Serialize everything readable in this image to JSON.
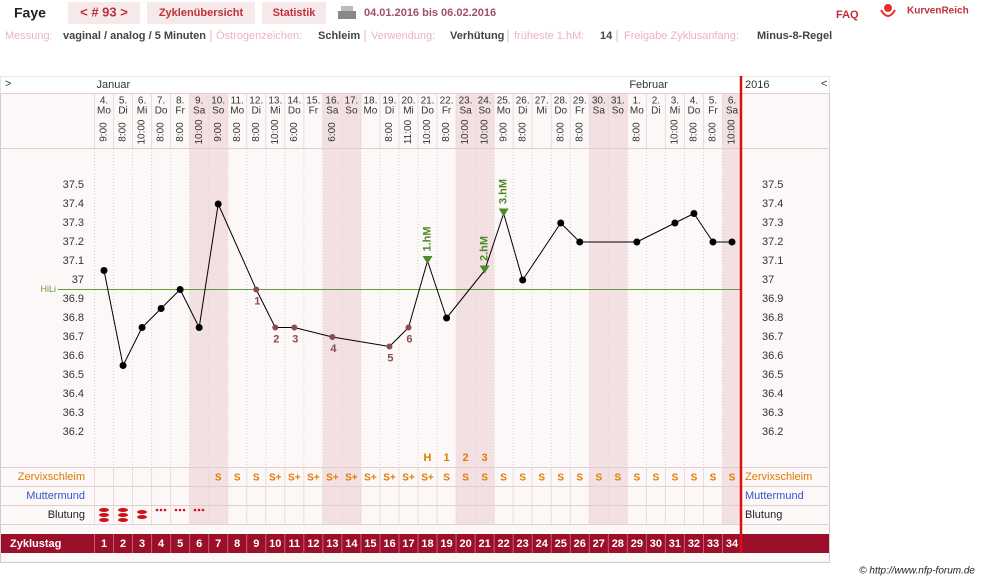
{
  "header": {
    "name": "Faye",
    "cycle_nav": "< # 93 >",
    "tabs": [
      "Zyklenübersicht",
      "Statistik"
    ],
    "date_range": "04.01.2016 bis 06.02.2016",
    "faq": "FAQ",
    "logo": "KurvenReich"
  },
  "settings": [
    {
      "label": "Messung:",
      "value": "vaginal / analog / 5 Minuten"
    },
    {
      "label": "Östrogenzeichen:",
      "value": "Schleim"
    },
    {
      "label": "Verwendung:",
      "value": "Verhütung"
    },
    {
      "label": "früheste 1.hM:",
      "value": 14
    },
    {
      "label": "Freigabe Zyklusanfang:",
      "value": "Minus-8-Regel"
    }
  ],
  "chart_data": {
    "type": "line",
    "nav_left": ">",
    "nav_right": "<",
    "year": "2016",
    "month_labels": [
      "Januar",
      null,
      null,
      null,
      null,
      null,
      null,
      null,
      null,
      null,
      null,
      null,
      null,
      null,
      null,
      null,
      null,
      null,
      null,
      null,
      null,
      null,
      null,
      null,
      null,
      null,
      null,
      null,
      "Februar",
      null,
      null,
      null,
      null,
      null
    ],
    "dates": [
      "4.",
      "5.",
      "6.",
      "7.",
      "8.",
      "9.",
      "10.",
      "11.",
      "12.",
      "13.",
      "14.",
      "15.",
      "16.",
      "17.",
      "18.",
      "19.",
      "20.",
      "21.",
      "22.",
      "23.",
      "24.",
      "25.",
      "26.",
      "27.",
      "28.",
      "29.",
      "30.",
      "31.",
      "1.",
      "2.",
      "3.",
      "4.",
      "5.",
      "6."
    ],
    "weekdays": [
      "Mo",
      "Di",
      "Mi",
      "Do",
      "Fr",
      "Sa",
      "So",
      "Mo",
      "Di",
      "Mi",
      "Do",
      "Fr",
      "Sa",
      "So",
      "Mo",
      "Di",
      "Mi",
      "Do",
      "Fr",
      "Sa",
      "So",
      "Mo",
      "Di",
      "Mi",
      "Do",
      "Fr",
      "Sa",
      "So",
      "Mo",
      "Di",
      "Mi",
      "Do",
      "Fr",
      "Sa"
    ],
    "times": [
      "9:00",
      "8:00",
      "10:00",
      "8:00",
      "8:00",
      "10:00",
      "9:00",
      "8:00",
      "8:00",
      "10:00",
      "6:00",
      null,
      "6:00",
      null,
      null,
      "8:00",
      "11:00",
      "10:00",
      "8:00",
      "10:00",
      "10:00",
      "9:00",
      "8:00",
      null,
      "8:00",
      "8:00",
      null,
      null,
      "8:00",
      null,
      "10:00",
      "8:00",
      "8:00",
      "10:00"
    ],
    "categories": [
      1,
      2,
      3,
      4,
      5,
      6,
      7,
      8,
      9,
      10,
      11,
      12,
      13,
      14,
      15,
      16,
      17,
      18,
      19,
      20,
      21,
      22,
      23,
      24,
      25,
      26,
      27,
      28,
      29,
      30,
      31,
      32,
      33,
      34
    ],
    "category_title": "Zyklustag",
    "values": [
      37.05,
      36.55,
      36.75,
      36.85,
      36.95,
      36.75,
      37.4,
      null,
      36.95,
      36.75,
      36.75,
      null,
      36.7,
      null,
      null,
      36.65,
      36.75,
      37.1,
      36.8,
      null,
      37.05,
      37.35,
      37.0,
      null,
      37.3,
      37.2,
      null,
      null,
      37.2,
      null,
      37.3,
      37.35,
      37.2,
      37.2
    ],
    "color": "#000000",
    "point_labels": [
      null,
      null,
      null,
      null,
      null,
      null,
      null,
      null,
      "1",
      "2",
      "3",
      null,
      "4",
      null,
      null,
      "5",
      "6",
      "1.hM",
      null,
      null,
      "2.hM",
      "3.hM",
      null,
      null,
      null,
      null,
      null,
      null,
      null,
      null,
      null,
      null,
      null,
      null
    ],
    "hili": {
      "label": "HiLi",
      "value": 36.95
    },
    "ylim": [
      36.0,
      37.7
    ],
    "yticks": [
      37.5,
      37.4,
      37.3,
      37.2,
      37.1,
      37,
      36.9,
      36.8,
      36.7,
      36.6,
      36.5,
      36.4,
      36.3,
      36.2
    ],
    "peak_labels": [
      null,
      null,
      null,
      null,
      null,
      null,
      null,
      null,
      null,
      null,
      null,
      null,
      null,
      null,
      null,
      null,
      null,
      "H",
      "1",
      "2",
      "3",
      null,
      null,
      null,
      null,
      null,
      null,
      null,
      null,
      null,
      null,
      null,
      null,
      null
    ],
    "rows": [
      {
        "label": "Zervixschleim",
        "values": [
          null,
          null,
          null,
          null,
          null,
          null,
          "S",
          "S",
          "S",
          "S+",
          "S+",
          "S+",
          "S+",
          "S+",
          "S+",
          "S+",
          "S+",
          "S+",
          "S",
          "S",
          "S",
          "S",
          "S",
          "S",
          "S",
          "S",
          "S",
          "S",
          "S",
          "S",
          "S",
          "S",
          "S",
          "S"
        ]
      },
      {
        "label": "Muttermund"
      },
      {
        "label": "Blutung"
      }
    ]
  },
  "footer": "© http://www.nfp-forum.de"
}
